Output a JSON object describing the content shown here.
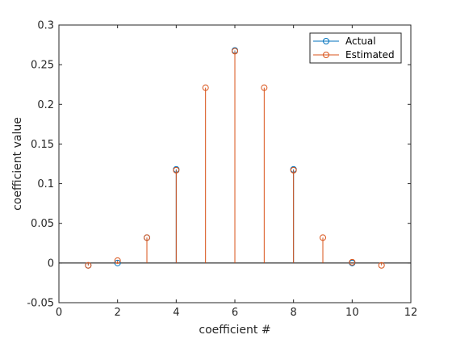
{
  "chart_data": {
    "type": "stem",
    "xlabel": "coefficient #",
    "ylabel": "coefficient value",
    "xlim": [
      0,
      12
    ],
    "ylim": [
      -0.05,
      0.3
    ],
    "grid": false,
    "legend_position": "top-right",
    "xticks": [
      "0",
      "2",
      "4",
      "6",
      "8",
      "10",
      "12"
    ],
    "yticks": [
      "-0.05",
      "0",
      "0.05",
      "0.1",
      "0.15",
      "0.2",
      "0.25",
      "0.3"
    ],
    "series": [
      {
        "name": "Actual",
        "color": "#0072BD",
        "x": [
          1,
          2,
          3,
          4,
          6,
          8,
          10
        ],
        "y": [
          -0.003,
          0.0,
          0.032,
          0.118,
          0.268,
          0.118,
          0.0
        ]
      },
      {
        "name": "Estimated",
        "color": "#D95319",
        "x": [
          1,
          2,
          3,
          4,
          5,
          6,
          7,
          8,
          9,
          10,
          11
        ],
        "y": [
          -0.003,
          0.003,
          0.032,
          0.117,
          0.221,
          0.267,
          0.221,
          0.117,
          0.032,
          0.001,
          -0.003
        ]
      }
    ]
  }
}
